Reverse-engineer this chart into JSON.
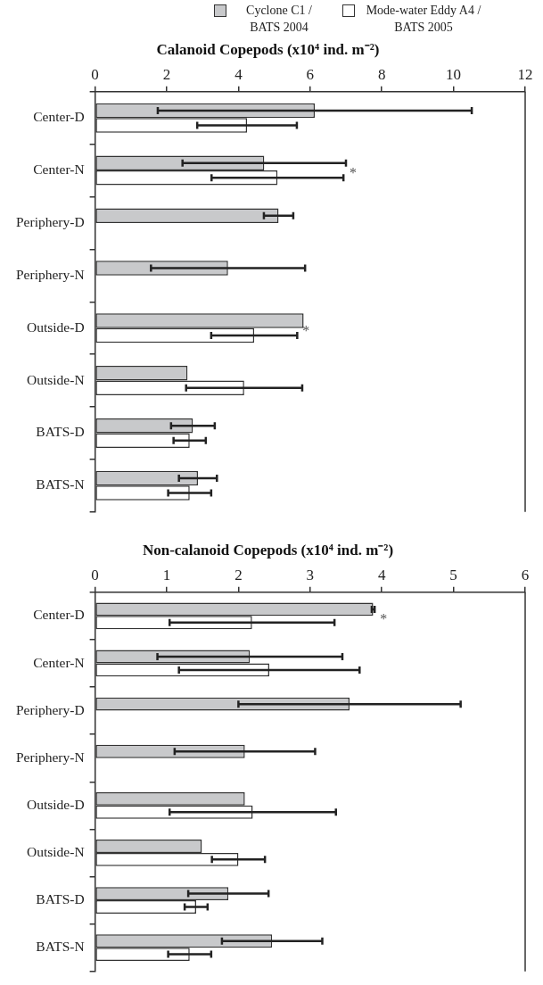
{
  "chart_data": [
    {
      "type": "bar",
      "orientation": "horizontal",
      "title": "Calanoid Copepods (x10⁴ ind. m⁻²)",
      "categories": [
        "Center-D",
        "Center-N",
        "Periphery-D",
        "Periphery-N",
        "Outside-D",
        "Outside-N",
        "BATS-D",
        "BATS-N"
      ],
      "series": [
        {
          "name": "Cyclone C1 / BATS 2004",
          "color": "#c8c9cb",
          "values": [
            6.13,
            4.72,
            5.12,
            3.71,
            5.82,
            2.58,
            2.73,
            2.87
          ],
          "errors": [
            4.38,
            2.28,
            0.41,
            2.15,
            null,
            null,
            0.61,
            0.53
          ]
        },
        {
          "name": "Mode-water Eddy A4 / BATS 2005",
          "color": "#ffffff",
          "values": [
            4.24,
            5.09,
            0,
            0,
            4.44,
            4.16,
            2.64,
            2.64
          ],
          "errors": [
            1.39,
            1.84,
            null,
            null,
            1.2,
            1.62,
            0.45,
            0.6
          ]
        }
      ],
      "xlim": [
        0,
        12
      ],
      "xticks": [
        0,
        2,
        4,
        6,
        8,
        10,
        12
      ],
      "grid": false,
      "legend": "top",
      "annotations": [
        {
          "text": "*",
          "x": 6.95,
          "y": "Center-N"
        },
        {
          "text": "*",
          "x": 5.64,
          "y": "Outside-D"
        }
      ]
    },
    {
      "type": "bar",
      "orientation": "horizontal",
      "title": "Non-calanoid Copepods (x10⁴ ind. m⁻²)",
      "categories": [
        "Center-D",
        "Center-N",
        "Periphery-D",
        "Periphery-N",
        "Outside-D",
        "Outside-N",
        "BATS-D",
        "BATS-N"
      ],
      "series": [
        {
          "color": "#c8c9cb",
          "values": [
            3.88,
            2.16,
            3.55,
            2.09,
            2.09,
            1.49,
            1.86,
            2.47
          ],
          "errors": [
            0.02,
            1.29,
            1.55,
            0.98,
            null,
            null,
            0.56,
            0.7
          ]
        },
        {
          "color": "#ffffff",
          "values": [
            2.19,
            2.43,
            0,
            0,
            2.2,
            2.0,
            1.41,
            1.32
          ],
          "errors": [
            1.15,
            1.26,
            null,
            null,
            1.16,
            0.37,
            0.16,
            0.3
          ]
        }
      ],
      "xlim": [
        0,
        6
      ],
      "xticks": [
        0,
        1,
        2,
        3,
        4,
        5,
        6
      ],
      "grid": false,
      "annotations": [
        {
          "text": "*",
          "x": 3.9,
          "y": "Center-D"
        }
      ]
    }
  ]
}
